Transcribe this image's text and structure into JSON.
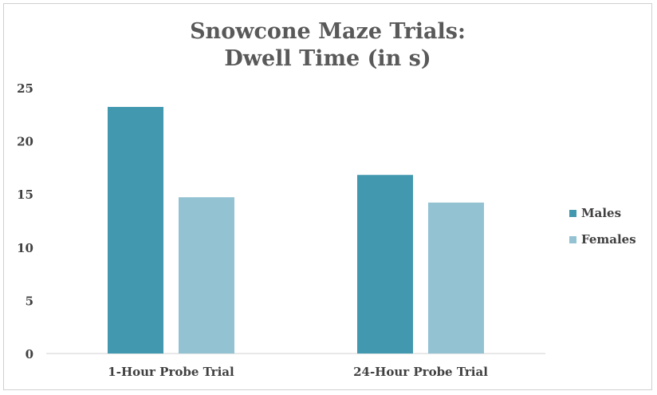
{
  "chart_data": {
    "type": "bar",
    "title_lines": [
      "Snowcone Maze Trials:",
      "Dwell Time (in s)"
    ],
    "categories": [
      "1-Hour Probe Trial",
      "24-Hour Probe Trial"
    ],
    "series": [
      {
        "name": "Males",
        "values": [
          23.2,
          16.8
        ],
        "color": "#4198AF"
      },
      {
        "name": "Females",
        "values": [
          14.7,
          14.2
        ],
        "color": "#93C2D3"
      }
    ],
    "ylim": [
      0,
      25
    ],
    "yticks": [
      "0",
      "5",
      "10",
      "15",
      "20",
      "25"
    ],
    "grid": false,
    "legend_position": "right"
  }
}
